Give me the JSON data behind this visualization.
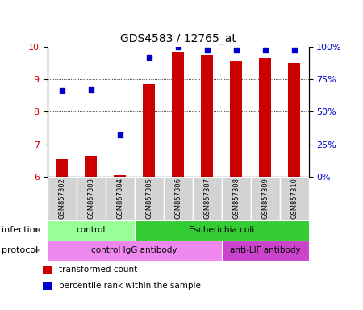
{
  "title": "GDS4583 / 12765_at",
  "samples": [
    "GSM857302",
    "GSM857303",
    "GSM857304",
    "GSM857305",
    "GSM857306",
    "GSM857307",
    "GSM857308",
    "GSM857309",
    "GSM857310"
  ],
  "transformed_count": [
    6.55,
    6.65,
    6.05,
    8.85,
    9.82,
    9.73,
    9.55,
    9.65,
    9.5
  ],
  "percentile_rank": [
    66,
    67,
    32,
    92,
    100,
    97,
    97,
    97,
    97
  ],
  "ylim_left": [
    6,
    10
  ],
  "ylim_right": [
    0,
    100
  ],
  "yticks_left": [
    6,
    7,
    8,
    9,
    10
  ],
  "yticks_right": [
    0,
    25,
    50,
    75,
    100
  ],
  "ytick_labels_right": [
    "0%",
    "25%",
    "50%",
    "75%",
    "100%"
  ],
  "bar_color": "#cc0000",
  "dot_color": "#0000cc",
  "infection_groups": [
    {
      "label": "control",
      "start": 0,
      "end": 3,
      "color": "#99ff99"
    },
    {
      "label": "Escherichia coli",
      "start": 3,
      "end": 9,
      "color": "#33cc33"
    }
  ],
  "protocol_groups": [
    {
      "label": "control IgG antibody",
      "start": 0,
      "end": 6,
      "color": "#ee88ee"
    },
    {
      "label": "anti-LIF antibody",
      "start": 6,
      "end": 9,
      "color": "#cc44cc"
    }
  ],
  "legend_items": [
    {
      "label": "transformed count",
      "color": "#cc0000"
    },
    {
      "label": "percentile rank within the sample",
      "color": "#0000cc"
    }
  ],
  "tick_label_color_left": "#cc0000",
  "tick_label_color_right": "#0000cc",
  "grid_color": "#000000",
  "background_color": "#ffffff"
}
